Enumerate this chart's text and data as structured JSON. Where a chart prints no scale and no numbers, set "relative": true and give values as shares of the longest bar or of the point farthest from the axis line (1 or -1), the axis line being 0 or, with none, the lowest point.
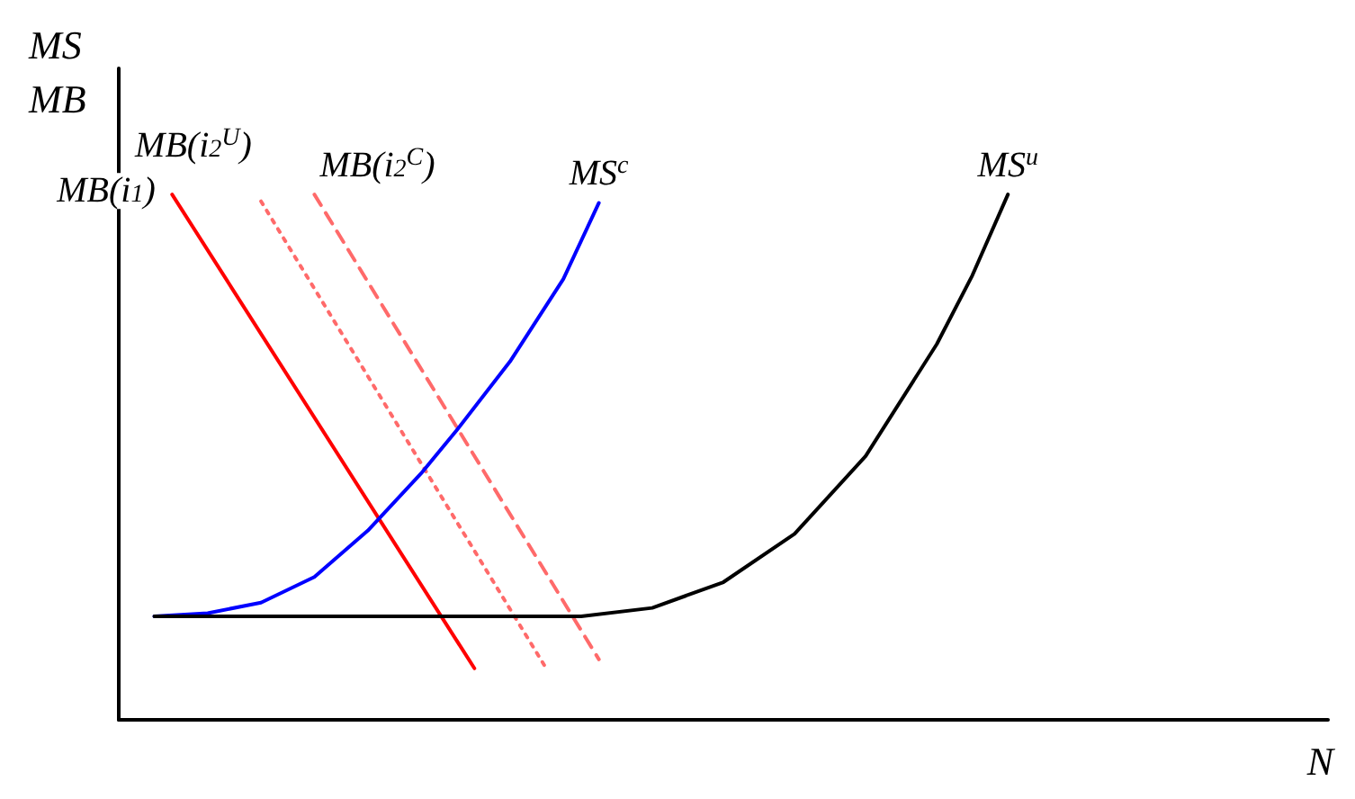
{
  "chart_data": {
    "type": "line",
    "relative": true,
    "xlabel": "N",
    "ylabel": "MS\nMB",
    "legend": false,
    "grid": false,
    "marker": "none",
    "categories": [
      null,
      null,
      null,
      null,
      null,
      null,
      null,
      null,
      null,
      null,
      null,
      null,
      null,
      null,
      null,
      null,
      null,
      null,
      null,
      null,
      null,
      null,
      null,
      null,
      null,
      null,
      null,
      null,
      null,
      null,
      null,
      null,
      null,
      null,
      null,
      null,
      null,
      null,
      null,
      null,
      null,
      null,
      null,
      null,
      null,
      null,
      null,
      null,
      null,
      null,
      null,
      null,
      null,
      null,
      null,
      null,
      null,
      null,
      null,
      null,
      null,
      null,
      null,
      null,
      null,
      null,
      null,
      null,
      null
    ],
    "series": [
      {
        "name": "MB(i$_{1}$)",
        "color": "#ff0000",
        "line_style": "solid",
        "values": [
          null,
          null,
          null,
          1.0,
          null,
          null,
          null,
          null,
          null,
          null,
          null,
          null,
          null,
          null,
          null,
          null,
          null,
          null,
          null,
          null,
          0.098,
          null,
          null,
          null,
          null,
          null,
          null,
          null,
          null,
          null,
          null,
          null,
          null,
          null,
          null,
          null,
          null,
          null,
          null,
          null,
          null,
          null,
          null,
          null,
          null,
          null,
          null,
          null,
          null,
          null,
          null,
          null,
          null,
          null,
          null,
          null,
          null,
          null,
          null,
          null,
          null,
          null,
          null,
          null,
          null,
          null,
          null,
          null,
          null
        ]
      },
      {
        "name": "MB(i$_{2}$$^{U}$)",
        "color": "#ff6a6a",
        "line_style": "dotted",
        "values": [
          null,
          null,
          null,
          null,
          null,
          null,
          null,
          null,
          0.987,
          null,
          null,
          null,
          null,
          null,
          null,
          null,
          null,
          null,
          null,
          null,
          null,
          null,
          null,
          null,
          0.1,
          null,
          null,
          null,
          null,
          null,
          null,
          null,
          null,
          null,
          null,
          null,
          null,
          null,
          null,
          null,
          null,
          null,
          null,
          null,
          null,
          null,
          null,
          null,
          null,
          null,
          null,
          null,
          null,
          null,
          null,
          null,
          null,
          null,
          null,
          null,
          null,
          null,
          null,
          null,
          null,
          null,
          null,
          null,
          null
        ]
      },
      {
        "name": "MB(i$_{2}$$^{C}$)",
        "color": "#ff6a6a",
        "line_style": "dashed",
        "values": [
          null,
          null,
          null,
          null,
          null,
          null,
          null,
          null,
          null,
          null,
          null,
          1.0,
          null,
          null,
          null,
          null,
          null,
          null,
          null,
          null,
          null,
          null,
          null,
          null,
          null,
          null,
          null,
          0.115,
          null,
          null,
          null,
          null,
          null,
          null,
          null,
          null,
          null,
          null,
          null,
          null,
          null,
          null,
          null,
          null,
          null,
          null,
          null,
          null,
          null,
          null,
          null,
          null,
          null,
          null,
          null,
          null,
          null,
          null,
          null,
          null,
          null,
          null,
          null,
          null,
          null,
          null,
          null,
          null,
          null
        ]
      },
      {
        "name": "MS$^{c}$",
        "color": "#0000ff",
        "line_style": "solid",
        "values": [
          null,
          null,
          0.197,
          null,
          null,
          0.203,
          null,
          null,
          0.223,
          null,
          null,
          0.272,
          null,
          null,
          0.36,
          null,
          null,
          0.469,
          null,
          0.551,
          null,
          null,
          0.682,
          null,
          null,
          0.839,
          null,
          0.984,
          null,
          null,
          null,
          null,
          null,
          null,
          null,
          null,
          null,
          null,
          null,
          null,
          null,
          null,
          null,
          null,
          null,
          null,
          null,
          null,
          null,
          null,
          null,
          null,
          null,
          null,
          null,
          null,
          null,
          null,
          null,
          null,
          null,
          null,
          null,
          null,
          null,
          null,
          null,
          null,
          null
        ]
      },
      {
        "name": "MS$^{u}$",
        "color": "#000000",
        "line_style": "solid",
        "values": [
          null,
          null,
          0.197,
          null,
          null,
          null,
          null,
          null,
          null,
          null,
          null,
          null,
          null,
          null,
          null,
          null,
          null,
          null,
          null,
          null,
          null,
          null,
          null,
          null,
          null,
          null,
          0.197,
          null,
          null,
          null,
          0.213,
          null,
          null,
          null,
          0.262,
          null,
          null,
          null,
          0.354,
          null,
          null,
          null,
          0.502,
          null,
          null,
          null,
          0.715,
          null,
          0.846,
          null,
          1.0,
          null,
          null,
          null,
          null,
          null,
          null,
          null,
          null,
          null,
          null,
          null,
          null,
          null,
          null,
          null,
          null,
          null,
          null
        ]
      }
    ]
  }
}
